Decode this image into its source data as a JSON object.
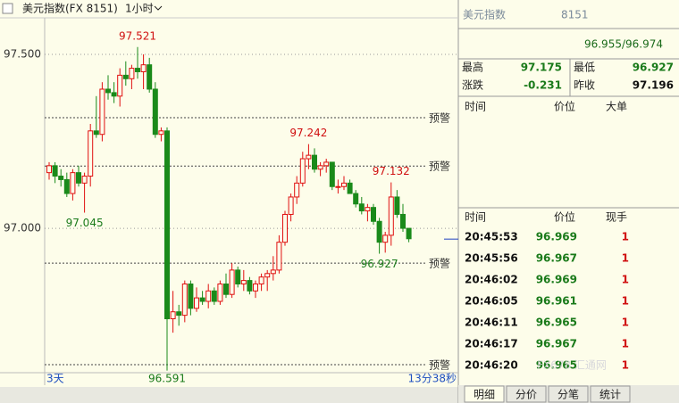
{
  "chart_data": {
    "type": "candlestick",
    "title": "美元指数(FX 8151)",
    "period": "1小时",
    "range_label": "3天",
    "countdown": "13分38秒",
    "up_color": "#e01010",
    "down_color": "#1a8a1a",
    "open": [
      97.16,
      97.18,
      97.15,
      97.14,
      97.1,
      97.16,
      97.13,
      97.15,
      97.28,
      97.27,
      97.4,
      97.39,
      97.38,
      97.44,
      97.43,
      97.46,
      97.45,
      97.47,
      97.4,
      97.27,
      97.28,
      96.74,
      96.76,
      96.75,
      96.84,
      96.77,
      96.8,
      96.79,
      96.82,
      96.79,
      96.84,
      96.81,
      96.88,
      96.84,
      96.85,
      96.82,
      96.84,
      96.86,
      96.87,
      96.88,
      96.96,
      97.04,
      97.09,
      97.13,
      97.2,
      97.21,
      97.17,
      97.18,
      97.19,
      97.12,
      97.12,
      97.13,
      97.1,
      97.07,
      97.05,
      97.06,
      97.02,
      96.96,
      96.98,
      97.09,
      97.04,
      97.0
    ],
    "high": [
      97.19,
      97.19,
      97.17,
      97.16,
      97.17,
      97.18,
      97.16,
      97.3,
      97.38,
      97.42,
      97.44,
      97.42,
      97.46,
      97.48,
      97.47,
      97.521,
      97.5,
      97.49,
      97.42,
      97.29,
      97.29,
      96.82,
      96.78,
      96.85,
      96.85,
      96.83,
      96.82,
      96.84,
      96.83,
      96.85,
      96.87,
      96.9,
      96.89,
      96.88,
      96.86,
      96.85,
      96.87,
      96.88,
      96.92,
      96.98,
      97.05,
      97.1,
      97.15,
      97.22,
      97.242,
      97.23,
      97.19,
      97.2,
      97.19,
      97.14,
      97.15,
      97.14,
      97.11,
      97.09,
      97.07,
      97.07,
      97.03,
      96.99,
      97.132,
      97.11,
      97.07,
      97.0
    ],
    "low": [
      97.14,
      97.13,
      97.12,
      97.09,
      97.08,
      97.12,
      97.045,
      97.12,
      97.26,
      97.25,
      97.37,
      97.36,
      97.35,
      97.41,
      97.4,
      97.43,
      97.4,
      97.39,
      97.26,
      97.25,
      96.591,
      96.7,
      96.72,
      96.73,
      96.75,
      96.76,
      96.78,
      96.77,
      96.78,
      96.78,
      96.8,
      96.8,
      96.83,
      96.82,
      96.81,
      96.8,
      96.82,
      96.82,
      96.85,
      96.87,
      96.95,
      97.02,
      97.07,
      97.12,
      97.17,
      97.16,
      97.15,
      97.16,
      97.11,
      97.1,
      97.11,
      97.1,
      97.06,
      97.04,
      97.02,
      97.01,
      96.927,
      96.93,
      96.95,
      97.03,
      96.99,
      96.96
    ],
    "close": [
      97.18,
      97.15,
      97.14,
      97.1,
      97.16,
      97.13,
      97.15,
      97.28,
      97.27,
      97.4,
      97.39,
      97.38,
      97.44,
      97.43,
      97.46,
      97.45,
      97.47,
      97.4,
      97.27,
      97.28,
      96.74,
      96.76,
      96.75,
      96.84,
      96.77,
      96.8,
      96.79,
      96.82,
      96.79,
      96.84,
      96.81,
      96.88,
      96.84,
      96.85,
      96.82,
      96.84,
      96.86,
      96.87,
      96.88,
      96.96,
      97.04,
      97.09,
      97.13,
      97.2,
      97.21,
      97.17,
      97.18,
      97.19,
      97.12,
      97.12,
      97.13,
      97.1,
      97.07,
      97.05,
      97.06,
      97.02,
      96.96,
      96.98,
      97.09,
      97.04,
      97.0,
      96.97
    ],
    "ylim": [
      96.585,
      97.605
    ],
    "yticks": [
      {
        "value": 97.5,
        "label": "97.500"
      },
      {
        "value": 97,
        "label": "97.000"
      }
    ],
    "alert_label": "预警",
    "alerts": [
      97.318,
      97.179,
      96.9,
      96.608
    ],
    "annotations": [
      97.521,
      97.045,
      97.242,
      97.132,
      96.927,
      96.591
    ]
  },
  "quote": {
    "title": "美元指数",
    "code": "8151",
    "price": "96.955/96.974",
    "stats": [
      {
        "label": "最高",
        "value": 97.175
      },
      {
        "label": "最低",
        "value": 96.927
      },
      {
        "label": "涨跌",
        "value": -0.231
      },
      {
        "label": "昨收",
        "value": 97.196
      }
    ],
    "big_headers": [
      "时间",
      "价位",
      "大单"
    ],
    "tick_headers": [
      "时间",
      "价位",
      "现手"
    ],
    "ticks": [
      [
        "20:45:53",
        96.969,
        1
      ],
      [
        "20:45:56",
        96.967,
        1
      ],
      [
        "20:46:02",
        96.969,
        1
      ],
      [
        "20:46:05",
        96.961,
        1
      ],
      [
        "20:46:11",
        96.965,
        1
      ],
      [
        "20:46:17",
        96.967,
        1
      ],
      [
        "20:46:20",
        96.965,
        1
      ]
    ],
    "tabs": [
      "明细",
      "分价",
      "分笔",
      "统计"
    ],
    "watermark": "FX678 汇通网"
  }
}
